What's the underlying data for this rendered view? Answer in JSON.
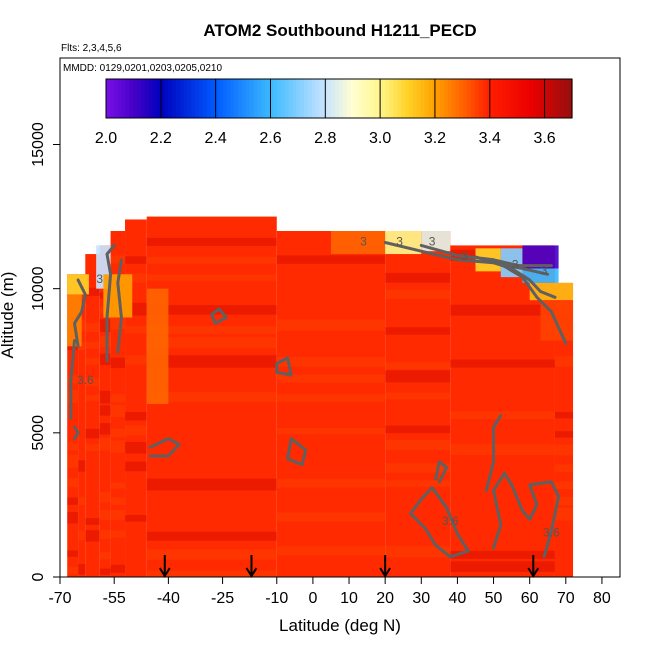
{
  "chart_data": {
    "type": "heatmap",
    "title": "ATOM2 Southbound H1211_PECD",
    "annotations": {
      "flights": "Flts: 2,3,4,5,6",
      "dates": "MMDD: 0129,0201,0203,0205,0210"
    },
    "xlabel": "Latitude (deg N)",
    "ylabel": "Altitude (m)",
    "xlim": [
      -70,
      85
    ],
    "ylim": [
      0,
      18000
    ],
    "x_ticks": [
      -70,
      -55,
      -40,
      -25,
      -10,
      0,
      10,
      20,
      30,
      40,
      50,
      60,
      70,
      80
    ],
    "y_ticks": [
      0,
      5000,
      10000,
      15000
    ],
    "colorbar": {
      "range": [
        2.0,
        3.7
      ],
      "ticks": [
        2.0,
        2.2,
        2.4,
        2.6,
        2.8,
        3.0,
        3.2,
        3.4,
        3.6
      ],
      "tick_labels": [
        "2.0",
        "2.2",
        "2.4",
        "2.6",
        "2.8",
        "3.0",
        "3.2",
        "3.4",
        "3.6"
      ]
    },
    "colors": {
      "low": "#5a10c8",
      "mid": "#ffffd0",
      "high": "#a01010",
      "main_field": "#ff2a00",
      "contour": "#606060"
    },
    "domain_columns": [
      {
        "lat": [
          -68,
          -65
        ],
        "alt_top": 10500
      },
      {
        "lat": [
          -65,
          -63
        ],
        "alt_top": 10500
      },
      {
        "lat": [
          -63,
          -59
        ],
        "alt_top": 11200
      },
      {
        "lat": [
          -59,
          -56
        ],
        "alt_top": 11500
      },
      {
        "lat": [
          -56,
          -52
        ],
        "alt_top": 12000
      },
      {
        "lat": [
          -52,
          -46
        ],
        "alt_top": 12400
      },
      {
        "lat": [
          -46,
          -10
        ],
        "alt_top": 12500
      },
      {
        "lat": [
          -10,
          20
        ],
        "alt_top": 12000
      },
      {
        "lat": [
          20,
          38
        ],
        "alt_top": 12000
      },
      {
        "lat": [
          38,
          67
        ],
        "alt_top": 11500
      },
      {
        "lat": [
          67,
          72
        ],
        "alt_top": 10200
      }
    ],
    "gradient_patches": [
      {
        "lat": [
          -60,
          -56
        ],
        "alt": [
          10000,
          11500
        ],
        "value": 2.8
      },
      {
        "lat": [
          -68,
          -62
        ],
        "alt": [
          9800,
          10500
        ],
        "value": 3.1
      },
      {
        "lat": [
          -68,
          -64
        ],
        "alt": [
          8000,
          9800
        ],
        "value": 3.25
      },
      {
        "lat": [
          -58,
          -50
        ],
        "alt": [
          9000,
          10500
        ],
        "value": 3.2
      },
      {
        "lat": [
          -46,
          -40
        ],
        "alt": [
          6000,
          10000
        ],
        "value": 3.3
      },
      {
        "lat": [
          5,
          20
        ],
        "alt": [
          11200,
          12000
        ],
        "value": 3.3
      },
      {
        "lat": [
          20,
          30
        ],
        "alt": [
          11200,
          12000
        ],
        "value": 3.0
      },
      {
        "lat": [
          30,
          38
        ],
        "alt": [
          11300,
          12000
        ],
        "value": 2.85
      },
      {
        "lat": [
          45,
          52
        ],
        "alt": [
          10600,
          11400
        ],
        "value": 3.1
      },
      {
        "lat": [
          52,
          58
        ],
        "alt": [
          10400,
          11400
        ],
        "value": 2.7
      },
      {
        "lat": [
          58,
          68
        ],
        "alt": [
          10700,
          11500
        ],
        "value": 2.1
      },
      {
        "lat": [
          58,
          68
        ],
        "alt": [
          10200,
          10700
        ],
        "value": 2.6
      },
      {
        "lat": [
          60,
          72
        ],
        "alt": [
          9600,
          10200
        ],
        "value": 3.15
      },
      {
        "lat": [
          63,
          72
        ],
        "alt": [
          8200,
          9600
        ],
        "value": 3.35
      }
    ],
    "contour_lines": [
      {
        "level": 3.4,
        "points": [
          [
            -65,
            8000
          ],
          [
            -66,
            8800
          ],
          [
            -64,
            9200
          ],
          [
            -63,
            9800
          ],
          [
            -65,
            10300
          ]
        ]
      },
      {
        "level": 3.4,
        "points": [
          [
            -57,
            7500
          ],
          [
            -57,
            9000
          ],
          [
            -56,
            10500
          ],
          [
            -57,
            11200
          ],
          [
            -55,
            11500
          ]
        ]
      },
      {
        "level": 3.4,
        "points": [
          [
            -54,
            7800
          ],
          [
            -53,
            9000
          ],
          [
            -54,
            10200
          ],
          [
            -53,
            11000
          ]
        ]
      },
      {
        "level": 3.0,
        "points": [
          [
            20,
            11600
          ],
          [
            30,
            11300
          ],
          [
            40,
            11000
          ],
          [
            50,
            10900
          ],
          [
            58,
            10700
          ],
          [
            65,
            10500
          ]
        ]
      },
      {
        "level": 3.0,
        "points": [
          [
            30,
            11500
          ],
          [
            40,
            11150
          ],
          [
            50,
            11000
          ],
          [
            57,
            10800
          ],
          [
            66,
            10800
          ]
        ]
      },
      {
        "level": 3.0,
        "points": [
          [
            45,
            11100
          ],
          [
            55,
            10700
          ],
          [
            60,
            10300
          ],
          [
            63,
            9900
          ],
          [
            67,
            9700
          ]
        ]
      },
      {
        "level": 3.0,
        "points": [
          [
            50,
            11000
          ],
          [
            58,
            10400
          ],
          [
            62,
            9700
          ],
          [
            66,
            9200
          ],
          [
            70,
            8100
          ]
        ]
      },
      {
        "level": 3.6,
        "points": [
          [
            -27,
            8800
          ],
          [
            -24,
            9000
          ],
          [
            -26,
            9300
          ],
          [
            -28,
            9100
          ],
          [
            -27,
            8800
          ]
        ]
      },
      {
        "level": 3.6,
        "points": [
          [
            -10,
            7100
          ],
          [
            -6,
            7000
          ],
          [
            -7,
            7600
          ],
          [
            -10,
            7400
          ],
          [
            -10,
            7100
          ]
        ]
      },
      {
        "level": 3.6,
        "points": [
          [
            -45,
            4200
          ],
          [
            -40,
            4200
          ],
          [
            -37,
            4600
          ],
          [
            -40,
            4800
          ],
          [
            -45,
            4500
          ]
        ]
      },
      {
        "level": 3.6,
        "points": [
          [
            -7,
            4100
          ],
          [
            -3,
            3900
          ],
          [
            -2,
            4400
          ],
          [
            -6,
            4800
          ],
          [
            -7,
            4100
          ]
        ]
      },
      {
        "level": 3.6,
        "points": [
          [
            -66,
            4800
          ],
          [
            -65,
            5000
          ],
          [
            -66,
            5200
          ]
        ]
      },
      {
        "level": 3.6,
        "points": [
          [
            -67,
            5500
          ],
          [
            -67,
            6800
          ],
          [
            -66,
            8200
          ]
        ]
      },
      {
        "level": 3.6,
        "points": [
          [
            27,
            2200
          ],
          [
            30,
            2700
          ],
          [
            33,
            3100
          ],
          [
            37,
            2400
          ],
          [
            40,
            1500
          ],
          [
            43,
            900
          ],
          [
            38,
            700
          ],
          [
            34,
            1100
          ],
          [
            31,
            1700
          ],
          [
            27,
            2200
          ]
        ]
      },
      {
        "level": 3.6,
        "points": [
          [
            50,
            1000
          ],
          [
            52,
            1800
          ],
          [
            50,
            3000
          ],
          [
            53,
            3600
          ],
          [
            55,
            3200
          ],
          [
            58,
            2300
          ],
          [
            60,
            2000
          ],
          [
            62,
            2500
          ],
          [
            60,
            3200
          ],
          [
            66,
            3300
          ],
          [
            68,
            2800
          ],
          [
            66,
            1600
          ],
          [
            64,
            700
          ]
        ]
      },
      {
        "level": 3.6,
        "points": [
          [
            34,
            3400
          ],
          [
            35,
            4000
          ],
          [
            37,
            3800
          ],
          [
            35,
            3300
          ]
        ]
      },
      {
        "level": 3.6,
        "points": [
          [
            48,
            3000
          ],
          [
            50,
            4000
          ],
          [
            50,
            5200
          ],
          [
            52,
            5600
          ]
        ]
      }
    ],
    "contour_labels": [
      {
        "text": "3",
        "lat": -59,
        "alt": 10200
      },
      {
        "text": "3",
        "lat": 14,
        "alt": 11500
      },
      {
        "text": "3",
        "lat": 24,
        "alt": 11500
      },
      {
        "text": "3",
        "lat": 33,
        "alt": 11500
      },
      {
        "text": "3",
        "lat": 42,
        "alt": 11000
      },
      {
        "text": "3",
        "lat": 56,
        "alt": 10700
      },
      {
        "text": "3",
        "lat": 64,
        "alt": 10500
      },
      {
        "text": "3.6",
        "lat": -63,
        "alt": 6700
      },
      {
        "text": "3.6",
        "lat": 38,
        "alt": 1800
      },
      {
        "text": "3.6",
        "lat": 66,
        "alt": 1400
      }
    ],
    "arrows": [
      {
        "lat": -41
      },
      {
        "lat": -17
      },
      {
        "lat": 20
      },
      {
        "lat": 61
      }
    ]
  }
}
